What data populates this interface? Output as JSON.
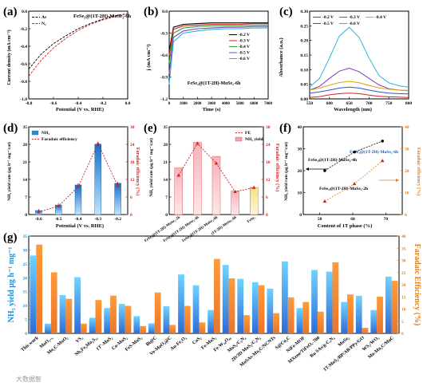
{
  "panels": {
    "a": {
      "label": "(a)",
      "title": "FeSe₂@(1T-2H)-MoSe₂-6h",
      "xlabel": "Potential (V vs. RHE)",
      "ylabel": "Current density (mA cm⁻²)",
      "xticks": [
        "-0.8",
        "-0.6",
        "-0.4",
        "-0.2",
        "0.0"
      ],
      "yticks": [
        "0.0",
        "-0.2",
        "-0.4",
        "-0.6",
        "-0.8",
        "-1.0"
      ],
      "legend": [
        "Ar",
        "N₂"
      ],
      "colors": {
        "Ar": "#000000",
        "N2": "#d62020"
      }
    },
    "b": {
      "label": "(b)",
      "xlabel": "Time (s)",
      "ylabel": "j (mA cm⁻²)",
      "xticks": [
        "0",
        "1000",
        "2000",
        "3000",
        "4000",
        "5000",
        "6000",
        "7000"
      ],
      "yticks": [
        "0.0",
        "-0.3",
        "-0.6",
        "-0.9",
        "-1.2"
      ],
      "legend": [
        "-0.2 V",
        "-0.3 V",
        "-0.4 V",
        "-0.5 V",
        "-0.6 V"
      ],
      "caption": "FeSe₂@(1T-2H)-MoSe₂-6h",
      "colors": [
        "#000000",
        "#d62020",
        "#2aa02a",
        "#7f3fbf",
        "#28b4d8"
      ]
    },
    "c": {
      "label": "(c)",
      "xlabel": "Wavelength (nm)",
      "ylabel": "Absorbance (a.u.)",
      "xticks": [
        "550",
        "600",
        "650",
        "700",
        "750",
        "800"
      ],
      "yticks": [
        "0.00",
        "0.05",
        "0.10",
        "0.15",
        "0.20",
        "0.25",
        "0.30"
      ],
      "legend": [
        "-0.2 V",
        "-0.3 V",
        "-0.4 V",
        "-0.5 V",
        "-0.6 V"
      ],
      "colors": [
        "#3050d0",
        "#7f3fbf",
        "#e0a000",
        "#d62020",
        "#28b4d8"
      ]
    },
    "d": {
      "label": "(d)",
      "xlabel": "Potential (V vs. RHE)",
      "ylabel": "NH₃ yield rate (μg h⁻¹ mg⁻¹cat)",
      "y2label": "Faradaic efficiency (%)",
      "legend": [
        "NH₃",
        "Faradaic efficiency"
      ],
      "xticks": [
        "-0.6",
        "-0.5",
        "-0.4",
        "-0.3",
        "-0.2"
      ],
      "yticks": [
        "0",
        "7",
        "14",
        "21",
        "28",
        "35"
      ],
      "y2ticks": [
        "0",
        "6",
        "12",
        "18",
        "24",
        "30"
      ]
    },
    "e": {
      "label": "(e)",
      "ylabel": "NH₃ yield rate (μg h⁻¹ mg⁻¹cat)",
      "y2label": "Faradaic efficiency (%)",
      "legend": [
        "FE",
        "NH₃ yield"
      ],
      "yticks": [
        "0",
        "7",
        "14",
        "21",
        "28",
        "35"
      ],
      "y2ticks": [
        "0",
        "6",
        "12",
        "18",
        "24",
        "30"
      ]
    },
    "f": {
      "label": "(f)",
      "xlabel": "Content of 1T phase (%)",
      "ylabel": "NH₃ yield rate (μg h⁻¹ mg⁻¹cat)",
      "y2label": "Faradaic efficiency (%)",
      "xticks": [
        "50",
        "60",
        "70"
      ],
      "yticks": [
        "0",
        "10",
        "20",
        "30",
        "40"
      ],
      "y2ticks": [
        "0",
        "10",
        "20",
        "30",
        "40"
      ],
      "annotations": [
        "FeSe₂@(1T-2H)-MoSe₂-4h",
        "FeSe₂@(1T-2H)-MoSe₂-6h",
        "FeSe₂@(1T-2H)-MoSe₂-2h"
      ]
    },
    "g": {
      "label": "(g)",
      "ylabel": "NH₃ yield μg h⁻¹ mg⁻¹",
      "y2label": "Faradaic Efficiency (%)",
      "yticks": [
        "0",
        "5",
        "10",
        "15",
        "20",
        "25",
        "30",
        "35"
      ],
      "y2ticks": [
        "0",
        "5",
        "10",
        "15",
        "20",
        "25",
        "30",
        "35",
        "40"
      ]
    }
  },
  "watermark": "大数据智",
  "chart_data": [
    {
      "type": "line",
      "panel": "a",
      "xlim": [
        -0.8,
        0.0
      ],
      "ylim": [
        -1.0,
        0.0
      ],
      "series": [
        {
          "name": "Ar",
          "x": [
            -0.8,
            -0.7,
            -0.6,
            -0.5,
            -0.4,
            -0.3,
            -0.2,
            -0.1,
            0.0
          ],
          "y": [
            -0.66,
            -0.49,
            -0.37,
            -0.28,
            -0.2,
            -0.14,
            -0.09,
            -0.05,
            -0.03
          ]
        },
        {
          "name": "N₂",
          "x": [
            -0.8,
            -0.7,
            -0.6,
            -0.5,
            -0.4,
            -0.3,
            -0.2,
            -0.1,
            0.0
          ],
          "y": [
            -0.74,
            -0.56,
            -0.42,
            -0.31,
            -0.22,
            -0.15,
            -0.1,
            -0.06,
            -0.03
          ]
        }
      ]
    },
    {
      "type": "line",
      "panel": "b",
      "xlim": [
        0,
        7000
      ],
      "ylim": [
        -1.2,
        0.0
      ],
      "series": [
        {
          "name": "-0.2 V",
          "x": [
            0,
            300,
            1000,
            2000,
            3000,
            4000,
            5000,
            6000,
            7000
          ],
          "y": [
            -0.55,
            -0.22,
            -0.18,
            -0.17,
            -0.16,
            -0.16,
            -0.16,
            -0.16,
            -0.16
          ]
        },
        {
          "name": "-0.3 V",
          "x": [
            0,
            300,
            1000,
            2000,
            3000,
            4000,
            5000,
            6000,
            7000
          ],
          "y": [
            -0.6,
            -0.25,
            -0.2,
            -0.19,
            -0.18,
            -0.18,
            -0.18,
            -0.17,
            -0.17
          ]
        },
        {
          "name": "-0.4 V",
          "x": [
            0,
            300,
            1000,
            2000,
            3000,
            4000,
            5000,
            6000,
            7000
          ],
          "y": [
            -0.7,
            -0.3,
            -0.23,
            -0.21,
            -0.2,
            -0.2,
            -0.2,
            -0.19,
            -0.19
          ]
        },
        {
          "name": "-0.5 V",
          "x": [
            0,
            300,
            1000,
            2000,
            3000,
            4000,
            5000,
            6000,
            7000
          ],
          "y": [
            -0.85,
            -0.36,
            -0.27,
            -0.24,
            -0.23,
            -0.22,
            -0.22,
            -0.21,
            -0.21
          ]
        },
        {
          "name": "-0.6 V",
          "x": [
            0,
            300,
            1000,
            2000,
            3000,
            4000,
            5000,
            6000,
            7000
          ],
          "y": [
            -1.0,
            -0.42,
            -0.3,
            -0.27,
            -0.25,
            -0.24,
            -0.24,
            -0.23,
            -0.23
          ]
        }
      ]
    },
    {
      "type": "line",
      "panel": "c",
      "xlim": [
        550,
        800
      ],
      "ylim": [
        0.0,
        0.3
      ],
      "series": [
        {
          "name": "-0.2 V",
          "x": [
            550,
            575,
            600,
            625,
            650,
            675,
            700,
            725,
            750,
            775,
            800
          ],
          "y": [
            0.02,
            0.024,
            0.03,
            0.037,
            0.04,
            0.037,
            0.03,
            0.024,
            0.02,
            0.018,
            0.017
          ]
        },
        {
          "name": "-0.3 V",
          "x": [
            550,
            575,
            600,
            625,
            650,
            675,
            700,
            725,
            750,
            775,
            800
          ],
          "y": [
            0.03,
            0.043,
            0.07,
            0.095,
            0.105,
            0.093,
            0.07,
            0.048,
            0.035,
            0.03,
            0.028
          ]
        },
        {
          "name": "-0.4 V",
          "x": [
            550,
            575,
            600,
            625,
            650,
            675,
            700,
            725,
            750,
            775,
            800
          ],
          "y": [
            0.03,
            0.037,
            0.047,
            0.056,
            0.06,
            0.055,
            0.046,
            0.038,
            0.033,
            0.03,
            0.029
          ]
        },
        {
          "name": "-0.5 V",
          "x": [
            550,
            575,
            600,
            625,
            650,
            675,
            700,
            725,
            750,
            775,
            800
          ],
          "y": [
            0.005,
            0.008,
            0.014,
            0.018,
            0.02,
            0.018,
            0.013,
            0.009,
            0.007,
            0.006,
            0.005
          ]
        },
        {
          "name": "-0.6 V",
          "x": [
            550,
            575,
            600,
            625,
            650,
            675,
            700,
            725,
            750,
            775,
            800
          ],
          "y": [
            0.04,
            0.07,
            0.14,
            0.215,
            0.245,
            0.21,
            0.14,
            0.08,
            0.055,
            0.045,
            0.04
          ]
        }
      ]
    },
    {
      "type": "bar",
      "panel": "d",
      "categories": [
        "-0.6",
        "-0.5",
        "-0.4",
        "-0.3",
        "-0.2"
      ],
      "series": [
        {
          "name": "NH₃",
          "values": [
            1.6,
            3.8,
            11.8,
            28.1,
            12.5
          ]
        },
        {
          "name": "Faradaic efficiency",
          "values": [
            0.8,
            2.9,
            9.5,
            24.3,
            9.8
          ]
        }
      ],
      "ylim": [
        0,
        35
      ],
      "y2lim": [
        0,
        30
      ]
    },
    {
      "type": "bar",
      "panel": "e",
      "categories": [
        "FeSe₂@(1T-2H)-MoSe₂-2h",
        "FeSe₂@(1T-2H)-MoSe₂-4h",
        "FeSe₂@(1T-2H)-MoSe₂-6h",
        "(1T-2H)-MoSe₂-6h",
        "FeSe₂"
      ],
      "series": [
        {
          "name": "NH₃ yield",
          "values": [
            18.6,
            28.8,
            23.2,
            9.4,
            10.8
          ]
        },
        {
          "name": "FE",
          "values": [
            13.4,
            24.3,
            17.5,
            7.8,
            9.2
          ]
        }
      ],
      "ylim": [
        0,
        35
      ],
      "y2lim": [
        0,
        30
      ]
    },
    {
      "type": "scatter",
      "panel": "f",
      "xlim": [
        45,
        75
      ],
      "ylim": [
        0,
        40
      ],
      "series": [
        {
          "name": "NH₃ yield rate",
          "x": [
            51.5,
            60.5,
            69.0
          ],
          "y": [
            20.0,
            28.5,
            33.5
          ]
        },
        {
          "name": "Faradaic efficiency",
          "x": [
            51.5,
            60.5,
            69.0
          ],
          "y": [
            6.0,
            14.0,
            24.5
          ]
        }
      ]
    },
    {
      "type": "bar",
      "panel": "g",
      "categories": [
        "This work",
        "MoO₃₋ₓ",
        "Mo₂C-MoO₂",
        "VS₂",
        "Nb₂Fe₃Mo₃S₁₁",
        "1T'-MoS₂",
        "Co-MoS₂",
        "FeS-MoS₂",
        "Bi@C",
        "Vo-MoO₃@C",
        "Au-Fe₂O₃",
        "CoS₂",
        "Fe-MoS₂",
        "Fe-W₁₈O₄₉",
        "MoS₂/C₃N₄",
        "2D/3D MoS₂/C₃N₄",
        "MoSAs-Mo₂C/NCNTs",
        "S@Co₃C",
        "NiFe-MOF",
        "MXene/TiFeOₓ-700",
        "Ru SAs/g-C₃N₄",
        "MoSe₂",
        "1T-MoS₂/BP/AB/PPy/GO",
        "WS₂/WO₃",
        "Mo-Mo₂C/MoC"
      ],
      "series": [
        {
          "name": "NH₃ yield",
          "values": [
            28.0,
            3.5,
            13.8,
            20.2,
            5.6,
            9.1,
            10.6,
            6.2,
            3.6,
            9.8,
            21.2,
            17.3,
            8.4,
            24.6,
            19.6,
            18.4,
            16.1,
            25.9,
            9.1,
            22.8,
            22.2,
            11.3,
            13.5,
            8.4,
            20.4
          ]
        },
        {
          "name": "Faradaic Efficiency",
          "values": [
            36.5,
            25.1,
            14.2,
            4.0,
            13.7,
            15.5,
            11.3,
            3.0,
            16.8,
            3.5,
            11.3,
            4.5,
            30.6,
            22.6,
            7.5,
            19.8,
            8.3,
            14.8,
            12.9,
            8.9,
            29.2,
            16.0,
            2.3,
            15.1,
            21.6
          ]
        }
      ],
      "ylim": [
        0,
        35
      ],
      "y2lim": [
        0,
        40
      ]
    }
  ]
}
